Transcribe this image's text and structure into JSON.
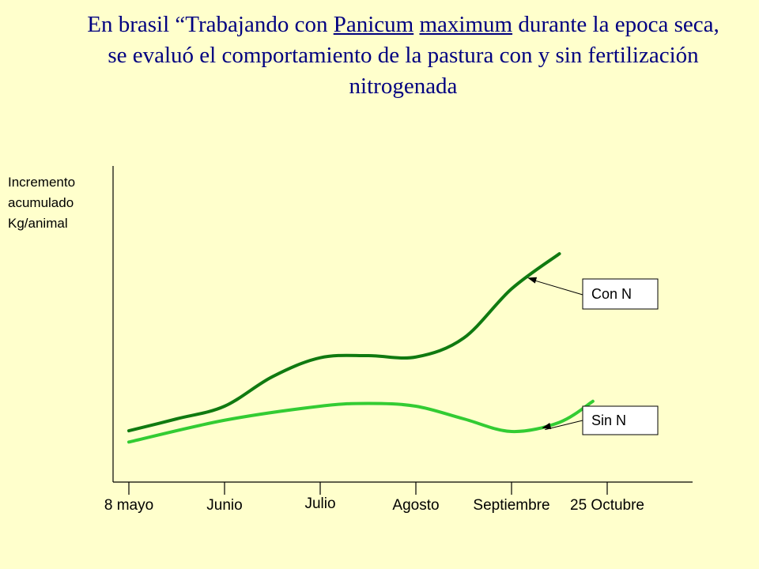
{
  "title": {
    "part1": "En brasil “Trabajando con ",
    "u1": "Panicum",
    "space": " ",
    "u2": "maximum",
    "part2": " durante la epoca seca, se evaluó el comportamiento de la pastura con y sin fertilización nitrogenada"
  },
  "chart_data": {
    "type": "line",
    "ylabel_lines": [
      "Incremento",
      "acumulado",
      "Kg/animal"
    ],
    "categories": [
      "8 mayo",
      "Junio",
      "Julio",
      "Agosto",
      "Septiembre",
      "25 Octubre"
    ],
    "y_tick_labels": "none",
    "grid": false,
    "series": [
      {
        "name": "Con N",
        "color": "#107A10",
        "x": [
          0,
          0.5,
          1,
          1.5,
          2,
          2.5,
          3,
          3.5,
          4,
          4.5
        ],
        "values": [
          0.73,
          0.9,
          1.08,
          1.5,
          1.77,
          1.8,
          1.78,
          2.05,
          2.75,
          3.25
        ]
      },
      {
        "name": "Sin N",
        "color": "#33CC33",
        "x": [
          0,
          1,
          2,
          2.5,
          3,
          3.5,
          4,
          4.5,
          4.85
        ],
        "values": [
          0.57,
          0.88,
          1.08,
          1.12,
          1.08,
          0.9,
          0.72,
          0.85,
          1.15
        ]
      }
    ],
    "ylim": [
      0,
      4.5
    ],
    "xlim": [
      -0.15,
      5.9
    ]
  }
}
